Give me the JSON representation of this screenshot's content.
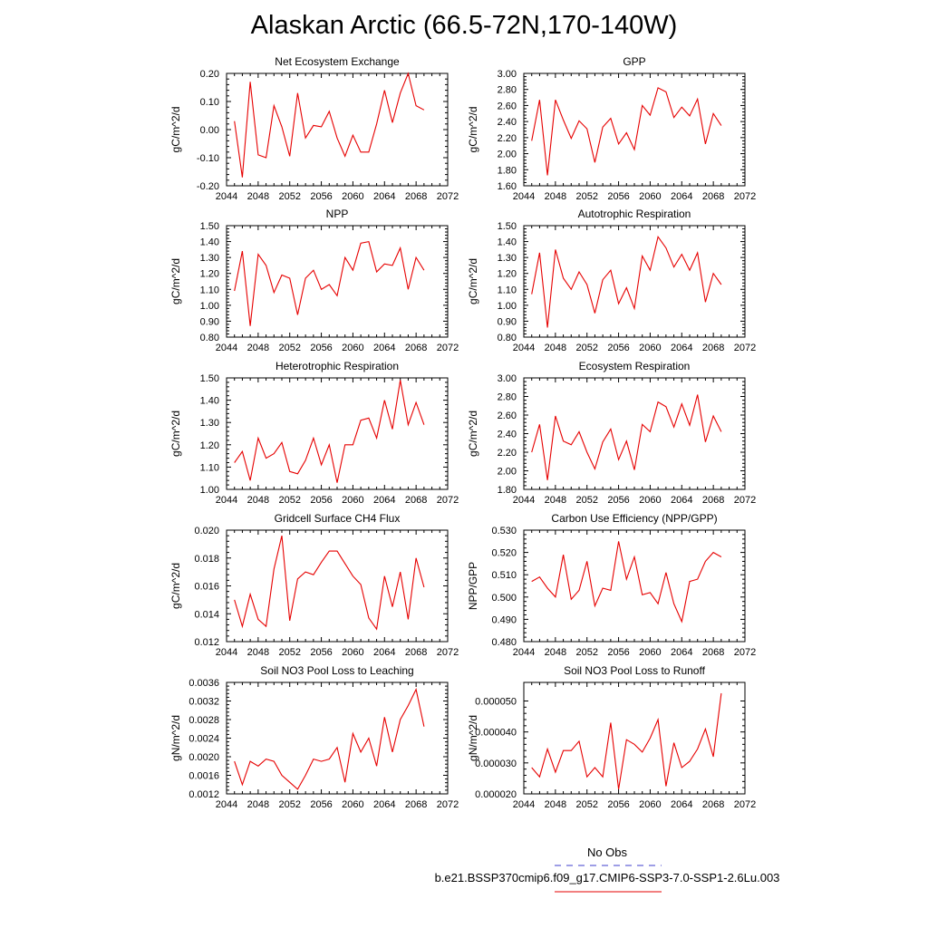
{
  "page": {
    "title": "Alaskan Arctic (66.5-72N,170-140W)"
  },
  "legend": {
    "obs_label": "No Obs",
    "obs_color": "#3d3dcc",
    "model_label": "b.e21.BSSP370cmip6.f09_g17.CMIP6-SSP3-7.0-SSP1-2.6Lu.003",
    "model_color": "#e60000"
  },
  "chart_data": [
    {
      "type": "line",
      "title": "Net Ecosystem Exchange",
      "ylabel": "gC/m^2/d",
      "xlim": [
        2044,
        2072
      ],
      "xticks": [
        "2044",
        "2048",
        "2052",
        "2056",
        "2060",
        "2064",
        "2068",
        "2072"
      ],
      "ylim": [
        -0.2,
        0.2
      ],
      "yticks": [
        "-0.20",
        "-0.10",
        "0.00",
        "0.10",
        "0.20"
      ],
      "x": [
        2045,
        2046,
        2047,
        2048,
        2049,
        2050,
        2051,
        2052,
        2053,
        2054,
        2055,
        2056,
        2057,
        2058,
        2059,
        2060,
        2061,
        2062,
        2063,
        2064,
        2065,
        2066,
        2067,
        2068,
        2069
      ],
      "series": [
        {
          "values": [
            0.03,
            -0.17,
            0.17,
            -0.09,
            -0.1,
            0.085,
            0.01,
            -0.095,
            0.13,
            -0.03,
            0.015,
            0.01,
            0.065,
            -0.03,
            -0.095,
            -0.02,
            -0.08,
            -0.08,
            0.02,
            0.14,
            0.025,
            0.13,
            0.2,
            0.085,
            0.07
          ]
        }
      ]
    },
    {
      "type": "line",
      "title": "GPP",
      "ylabel": "gC/m^2/d",
      "xlim": [
        2044,
        2072
      ],
      "xticks": [
        "2044",
        "2048",
        "2052",
        "2056",
        "2060",
        "2064",
        "2068",
        "2072"
      ],
      "ylim": [
        1.6,
        3.0
      ],
      "yticks": [
        "1.60",
        "1.80",
        "2.00",
        "2.20",
        "2.40",
        "2.60",
        "2.80",
        "3.00"
      ],
      "x": [
        2045,
        2046,
        2047,
        2048,
        2049,
        2050,
        2051,
        2052,
        2053,
        2054,
        2055,
        2056,
        2057,
        2058,
        2059,
        2060,
        2061,
        2062,
        2063,
        2064,
        2065,
        2066,
        2067,
        2068,
        2069
      ],
      "series": [
        {
          "values": [
            2.16,
            2.67,
            1.73,
            2.67,
            2.42,
            2.19,
            2.41,
            2.31,
            1.89,
            2.33,
            2.44,
            2.12,
            2.26,
            2.05,
            2.6,
            2.48,
            2.82,
            2.77,
            2.45,
            2.58,
            2.47,
            2.68,
            2.12,
            2.5,
            2.35
          ]
        }
      ]
    },
    {
      "type": "line",
      "title": "NPP",
      "ylabel": "gC/m^2/d",
      "xlim": [
        2044,
        2072
      ],
      "xticks": [
        "2044",
        "2048",
        "2052",
        "2056",
        "2060",
        "2064",
        "2068",
        "2072"
      ],
      "ylim": [
        0.8,
        1.5
      ],
      "yticks": [
        "0.80",
        "0.90",
        "1.00",
        "1.10",
        "1.20",
        "1.30",
        "1.40",
        "1.50"
      ],
      "x": [
        2045,
        2046,
        2047,
        2048,
        2049,
        2050,
        2051,
        2052,
        2053,
        2054,
        2055,
        2056,
        2057,
        2058,
        2059,
        2060,
        2061,
        2062,
        2063,
        2064,
        2065,
        2066,
        2067,
        2068,
        2069
      ],
      "series": [
        {
          "values": [
            1.09,
            1.34,
            0.87,
            1.32,
            1.25,
            1.08,
            1.19,
            1.17,
            0.94,
            1.17,
            1.22,
            1.1,
            1.13,
            1.06,
            1.3,
            1.22,
            1.39,
            1.4,
            1.21,
            1.26,
            1.25,
            1.36,
            1.1,
            1.3,
            1.22
          ]
        }
      ]
    },
    {
      "type": "line",
      "title": "Autotrophic Respiration",
      "ylabel": "gC/m^2/d",
      "xlim": [
        2044,
        2072
      ],
      "xticks": [
        "2044",
        "2048",
        "2052",
        "2056",
        "2060",
        "2064",
        "2068",
        "2072"
      ],
      "ylim": [
        0.8,
        1.5
      ],
      "yticks": [
        "0.80",
        "0.90",
        "1.00",
        "1.10",
        "1.20",
        "1.30",
        "1.40",
        "1.50"
      ],
      "x": [
        2045,
        2046,
        2047,
        2048,
        2049,
        2050,
        2051,
        2052,
        2053,
        2054,
        2055,
        2056,
        2057,
        2058,
        2059,
        2060,
        2061,
        2062,
        2063,
        2064,
        2065,
        2066,
        2067,
        2068,
        2069
      ],
      "series": [
        {
          "values": [
            1.07,
            1.33,
            0.86,
            1.35,
            1.17,
            1.1,
            1.21,
            1.13,
            0.95,
            1.16,
            1.22,
            1.01,
            1.11,
            0.98,
            1.31,
            1.22,
            1.43,
            1.36,
            1.24,
            1.32,
            1.22,
            1.33,
            1.02,
            1.2,
            1.13
          ]
        }
      ]
    },
    {
      "type": "line",
      "title": "Heterotrophic Respiration",
      "ylabel": "gC/m^2/d",
      "xlim": [
        2044,
        2072
      ],
      "xticks": [
        "2044",
        "2048",
        "2052",
        "2056",
        "2060",
        "2064",
        "2068",
        "2072"
      ],
      "ylim": [
        1.0,
        1.5
      ],
      "yticks": [
        "1.00",
        "1.10",
        "1.20",
        "1.30",
        "1.40",
        "1.50"
      ],
      "x": [
        2045,
        2046,
        2047,
        2048,
        2049,
        2050,
        2051,
        2052,
        2053,
        2054,
        2055,
        2056,
        2057,
        2058,
        2059,
        2060,
        2061,
        2062,
        2063,
        2064,
        2065,
        2066,
        2067,
        2068,
        2069
      ],
      "series": [
        {
          "values": [
            1.12,
            1.17,
            1.04,
            1.23,
            1.14,
            1.16,
            1.21,
            1.08,
            1.07,
            1.13,
            1.23,
            1.11,
            1.2,
            1.03,
            1.2,
            1.2,
            1.31,
            1.32,
            1.23,
            1.4,
            1.27,
            1.49,
            1.29,
            1.39,
            1.29
          ]
        }
      ]
    },
    {
      "type": "line",
      "title": "Ecosystem Respiration",
      "ylabel": "gC/m^2/d",
      "xlim": [
        2044,
        2072
      ],
      "xticks": [
        "2044",
        "2048",
        "2052",
        "2056",
        "2060",
        "2064",
        "2068",
        "2072"
      ],
      "ylim": [
        1.8,
        3.0
      ],
      "yticks": [
        "1.80",
        "2.00",
        "2.20",
        "2.40",
        "2.60",
        "2.80",
        "3.00"
      ],
      "x": [
        2045,
        2046,
        2047,
        2048,
        2049,
        2050,
        2051,
        2052,
        2053,
        2054,
        2055,
        2056,
        2057,
        2058,
        2059,
        2060,
        2061,
        2062,
        2063,
        2064,
        2065,
        2066,
        2067,
        2068,
        2069
      ],
      "series": [
        {
          "values": [
            2.2,
            2.5,
            1.9,
            2.59,
            2.32,
            2.28,
            2.42,
            2.2,
            2.02,
            2.31,
            2.45,
            2.12,
            2.32,
            2.01,
            2.5,
            2.42,
            2.74,
            2.69,
            2.47,
            2.72,
            2.49,
            2.82,
            2.31,
            2.59,
            2.42
          ]
        }
      ]
    },
    {
      "type": "line",
      "title": "Gridcell Surface CH4 Flux",
      "ylabel": "gC/m^2/d",
      "xlim": [
        2044,
        2072
      ],
      "xticks": [
        "2044",
        "2048",
        "2052",
        "2056",
        "2060",
        "2064",
        "2068",
        "2072"
      ],
      "ylim": [
        0.012,
        0.02
      ],
      "yticks": [
        "0.012",
        "0.014",
        "0.016",
        "0.018",
        "0.020"
      ],
      "x": [
        2045,
        2046,
        2047,
        2048,
        2049,
        2050,
        2051,
        2052,
        2053,
        2054,
        2055,
        2056,
        2057,
        2058,
        2059,
        2060,
        2061,
        2062,
        2063,
        2064,
        2065,
        2066,
        2067,
        2068,
        2069
      ],
      "series": [
        {
          "values": [
            0.015,
            0.0131,
            0.0154,
            0.0136,
            0.0131,
            0.0172,
            0.0196,
            0.0135,
            0.0165,
            0.017,
            0.0168,
            0.0177,
            0.0185,
            0.0185,
            0.0176,
            0.0167,
            0.0161,
            0.0137,
            0.0129,
            0.0167,
            0.0145,
            0.017,
            0.0136,
            0.018,
            0.0159
          ]
        }
      ]
    },
    {
      "type": "line",
      "title": "Carbon Use Efficiency (NPP/GPP)",
      "ylabel": "NPP/GPP",
      "xlim": [
        2044,
        2072
      ],
      "xticks": [
        "2044",
        "2048",
        "2052",
        "2056",
        "2060",
        "2064",
        "2068",
        "2072"
      ],
      "ylim": [
        0.48,
        0.53
      ],
      "yticks": [
        "0.480",
        "0.490",
        "0.500",
        "0.510",
        "0.520",
        "0.530"
      ],
      "x": [
        2045,
        2046,
        2047,
        2048,
        2049,
        2050,
        2051,
        2052,
        2053,
        2054,
        2055,
        2056,
        2057,
        2058,
        2059,
        2060,
        2061,
        2062,
        2063,
        2064,
        2065,
        2066,
        2067,
        2068,
        2069
      ],
      "series": [
        {
          "values": [
            0.507,
            0.509,
            0.504,
            0.5,
            0.519,
            0.499,
            0.503,
            0.516,
            0.496,
            0.504,
            0.503,
            0.525,
            0.508,
            0.518,
            0.501,
            0.502,
            0.497,
            0.511,
            0.497,
            0.489,
            0.507,
            0.508,
            0.516,
            0.52,
            0.518
          ]
        }
      ]
    },
    {
      "type": "line",
      "title": "Soil NO3 Pool Loss to Leaching",
      "ylabel": "gN/m^2/d",
      "xlim": [
        2044,
        2072
      ],
      "xticks": [
        "2044",
        "2048",
        "2052",
        "2056",
        "2060",
        "2064",
        "2068",
        "2072"
      ],
      "ylim": [
        0.0012,
        0.0036
      ],
      "yticks": [
        "0.0012",
        "0.0016",
        "0.0020",
        "0.0024",
        "0.0028",
        "0.0032",
        "0.0036"
      ],
      "x": [
        2045,
        2046,
        2047,
        2048,
        2049,
        2050,
        2051,
        2052,
        2053,
        2054,
        2055,
        2056,
        2057,
        2058,
        2059,
        2060,
        2061,
        2062,
        2063,
        2064,
        2065,
        2066,
        2067,
        2068,
        2069
      ],
      "series": [
        {
          "values": [
            0.0019,
            0.0014,
            0.0019,
            0.0018,
            0.00195,
            0.0019,
            0.0016,
            0.00145,
            0.0013,
            0.0016,
            0.00195,
            0.0019,
            0.00195,
            0.0022,
            0.00145,
            0.0025,
            0.0021,
            0.0024,
            0.0018,
            0.00285,
            0.0021,
            0.0028,
            0.0031,
            0.00345,
            0.00265
          ]
        }
      ]
    },
    {
      "type": "line",
      "title": "Soil NO3 Pool Loss to Runoff",
      "ylabel": "gN/m^2/d",
      "xlim": [
        2044,
        2072
      ],
      "xticks": [
        "2044",
        "2048",
        "2052",
        "2056",
        "2060",
        "2064",
        "2068",
        "2072"
      ],
      "ylim": [
        2e-05,
        5.6e-05
      ],
      "yticks": [
        "0.000020",
        "0.000030",
        "0.000040",
        "0.000050"
      ],
      "x": [
        2045,
        2046,
        2047,
        2048,
        2049,
        2050,
        2051,
        2052,
        2053,
        2054,
        2055,
        2056,
        2057,
        2058,
        2059,
        2060,
        2061,
        2062,
        2063,
        2064,
        2065,
        2066,
        2067,
        2068,
        2069
      ],
      "series": [
        {
          "values": [
            2.85e-05,
            2.55e-05,
            3.45e-05,
            2.7e-05,
            3.4e-05,
            3.4e-05,
            3.7e-05,
            2.55e-05,
            2.85e-05,
            2.55e-05,
            4.3e-05,
            2.15e-05,
            3.75e-05,
            3.6e-05,
            3.35e-05,
            3.8e-05,
            4.4e-05,
            2.25e-05,
            3.65e-05,
            2.85e-05,
            3.05e-05,
            3.45e-05,
            4.1e-05,
            3.2e-05,
            5.25e-05
          ]
        }
      ]
    }
  ]
}
